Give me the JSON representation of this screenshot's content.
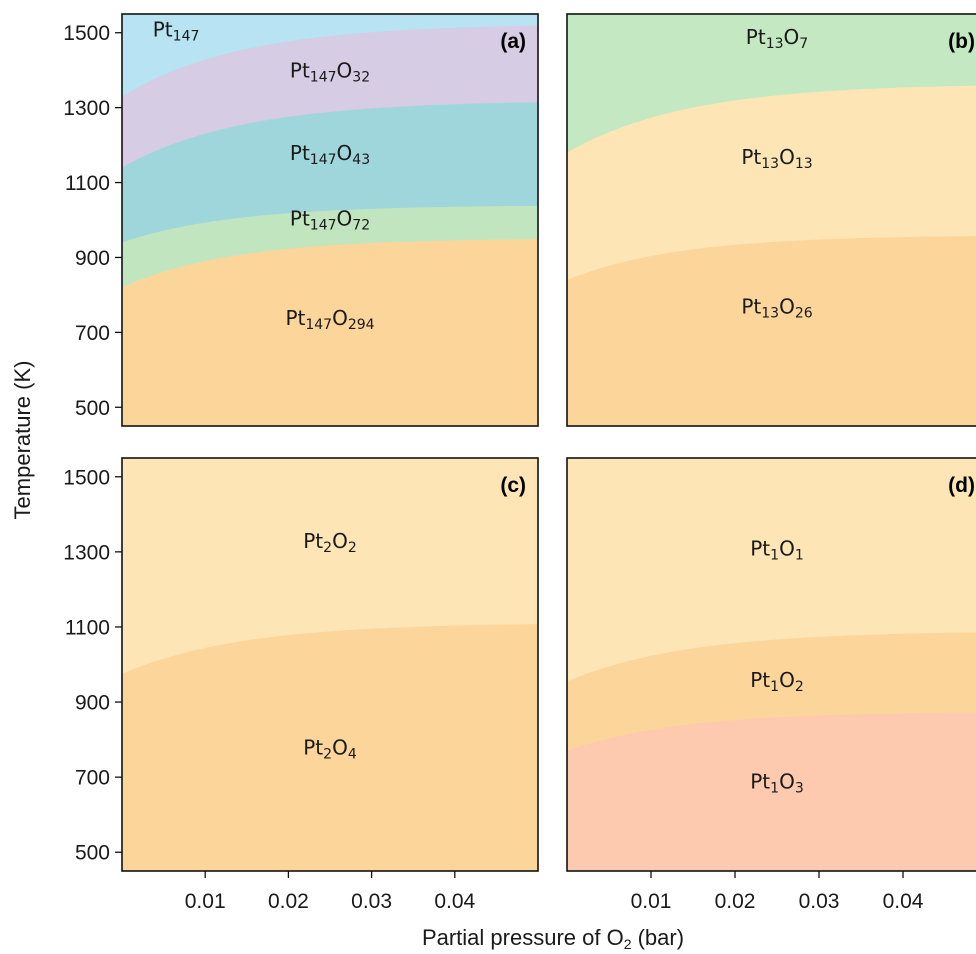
{
  "figure": {
    "ylabel": "Temperature (K)",
    "xlabel_main": "Partial pressure of O",
    "xlabel_sub": "2",
    "xlabel_tail": " (bar)"
  },
  "chart_data": [
    {
      "type": "area",
      "panel": "a",
      "tag": "(a)",
      "xlim": [
        0,
        0.05
      ],
      "ylim": [
        450,
        1550
      ],
      "yticks": [
        500,
        700,
        900,
        1100,
        1300,
        1500
      ],
      "yticks_visible": true,
      "xticks": [
        0.01,
        0.02,
        0.03,
        0.04
      ],
      "xticks_visible": false,
      "regions": [
        {
          "base": "Pt",
          "sub1": "147",
          "mid": "",
          "sub2": "",
          "color": "#b7e3f2",
          "upper": null,
          "label_at": [
            0.0065,
            1490
          ]
        },
        {
          "base": "Pt",
          "sub1": "147",
          "mid": "O",
          "sub2": "32",
          "color": "#d6cce4",
          "upper": {
            "start": 1330,
            "end": 1525,
            "sat": 0.065
          },
          "label_at": [
            0.025,
            1380
          ]
        },
        {
          "base": "Pt",
          "sub1": "147",
          "mid": "O",
          "sub2": "43",
          "color": "#9fd6dc",
          "upper": {
            "start": 1140,
            "end": 1320,
            "sat": 0.065
          },
          "label_at": [
            0.025,
            1160
          ]
        },
        {
          "base": "Pt",
          "sub1": "147",
          "mid": "O",
          "sub2": "72",
          "color": "#c1e6bf",
          "upper": {
            "start": 940,
            "end": 1040,
            "sat": 0.06
          },
          "label_at": [
            0.025,
            985
          ]
        },
        {
          "base": "Pt",
          "sub1": "147",
          "mid": "O",
          "sub2": "294",
          "color": "#fcd59a",
          "upper": {
            "start": 820,
            "end": 952,
            "sat": 0.06
          },
          "label_at": [
            0.025,
            720
          ]
        }
      ]
    },
    {
      "type": "area",
      "panel": "b",
      "tag": "(b)",
      "xlim": [
        0,
        0.05
      ],
      "ylim": [
        450,
        1550
      ],
      "yticks": [
        500,
        700,
        900,
        1100,
        1300,
        1500
      ],
      "yticks_visible": false,
      "xticks": [
        0.01,
        0.02,
        0.03,
        0.04
      ],
      "xticks_visible": false,
      "regions": [
        {
          "base": "Pt",
          "sub1": "13",
          "mid": "O",
          "sub2": "7",
          "color": "#c4e8c1",
          "upper": null,
          "label_at": [
            0.025,
            1470
          ]
        },
        {
          "base": "Pt",
          "sub1": "13",
          "mid": "O",
          "sub2": "13",
          "color": "#fde5b6",
          "upper": {
            "start": 1180,
            "end": 1365,
            "sat": 0.065
          },
          "label_at": [
            0.025,
            1150
          ]
        },
        {
          "base": "Pt",
          "sub1": "13",
          "mid": "O",
          "sub2": "26",
          "color": "#fcd59a",
          "upper": {
            "start": 840,
            "end": 960,
            "sat": 0.06
          },
          "label_at": [
            0.025,
            750
          ]
        }
      ]
    },
    {
      "type": "area",
      "panel": "c",
      "tag": "(c)",
      "xlim": [
        0,
        0.05
      ],
      "ylim": [
        450,
        1550
      ],
      "yticks": [
        500,
        700,
        900,
        1100,
        1300,
        1500
      ],
      "yticks_visible": true,
      "xticks": [
        0.01,
        0.02,
        0.03,
        0.04
      ],
      "xticks_visible": true,
      "regions": [
        {
          "base": "Pt",
          "sub1": "2",
          "mid": "O",
          "sub2": "2",
          "color": "#fde5b6",
          "upper": null,
          "label_at": [
            0.025,
            1310
          ]
        },
        {
          "base": "Pt",
          "sub1": "2",
          "mid": "O",
          "sub2": "4",
          "color": "#fcd59a",
          "upper": {
            "start": 975,
            "end": 1112,
            "sat": 0.065
          },
          "label_at": [
            0.025,
            760
          ]
        }
      ]
    },
    {
      "type": "area",
      "panel": "d",
      "tag": "(d)",
      "xlim": [
        0,
        0.05
      ],
      "ylim": [
        450,
        1550
      ],
      "yticks": [
        500,
        700,
        900,
        1100,
        1300,
        1500
      ],
      "yticks_visible": false,
      "xticks": [
        0.01,
        0.02,
        0.03,
        0.04
      ],
      "xticks_visible": true,
      "regions": [
        {
          "base": "Pt",
          "sub1": "1",
          "mid": "O",
          "sub2": "1",
          "color": "#fde5b6",
          "upper": null,
          "label_at": [
            0.025,
            1290
          ]
        },
        {
          "base": "Pt",
          "sub1": "1",
          "mid": "O",
          "sub2": "2",
          "color": "#fcd59a",
          "upper": {
            "start": 955,
            "end": 1090,
            "sat": 0.065
          },
          "label_at": [
            0.025,
            940
          ]
        },
        {
          "base": "Pt",
          "sub1": "1",
          "mid": "O",
          "sub2": "3",
          "color": "#fdcab0",
          "upper": {
            "start": 770,
            "end": 875,
            "sat": 0.06
          },
          "label_at": [
            0.025,
            670
          ]
        }
      ]
    }
  ]
}
